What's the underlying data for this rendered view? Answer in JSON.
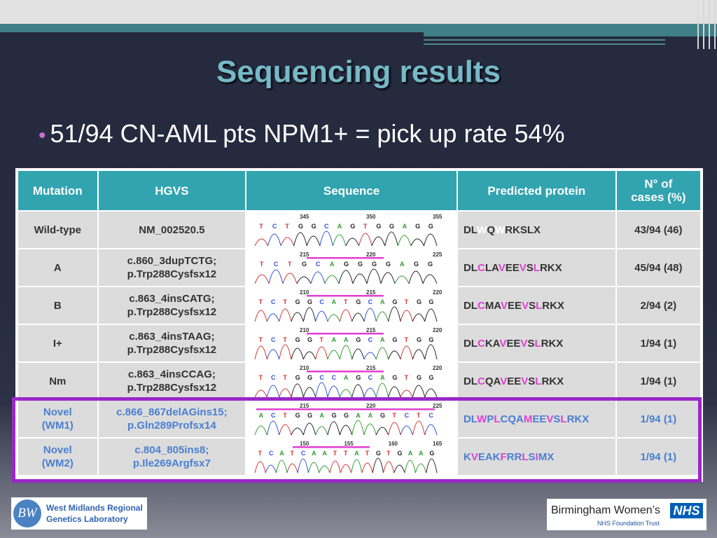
{
  "slide": {
    "title": "Sequencing results",
    "bullet": "51/94 CN-AML pts NPM1+ = pick up rate 54%"
  },
  "table": {
    "headers": {
      "mutation": "Mutation",
      "hgvs": "HGVS",
      "sequence": "Sequence",
      "protein": "Predicted protein",
      "cases_line1": "N° of",
      "cases_line2": "cases (%)"
    },
    "rows": [
      {
        "mutation": "Wild-type",
        "mutation2": "",
        "hgvs1": "NM_002520.5",
        "hgvs2": "",
        "ticks": [
          "345",
          "350",
          "355"
        ],
        "bases": "TCTGGCAGTGGAGG",
        "protein": [
          [
            "DL",
            "n"
          ],
          [
            "W",
            "w"
          ],
          [
            "Q",
            "n"
          ],
          [
            "W",
            "w"
          ],
          [
            "RKSLX",
            "n"
          ]
        ],
        "cases": "43/94 (46)"
      },
      {
        "mutation": "A",
        "mutation2": "",
        "hgvs1": "c.860_3dupTCTG;",
        "hgvs2": "p.Trp288Cysfsx12",
        "ticks": [
          "215",
          "220",
          "225"
        ],
        "bases": "TCTGCAGGGGAGG",
        "protein": [
          [
            "DL",
            "n"
          ],
          [
            "C",
            "c"
          ],
          [
            "LA",
            "n"
          ],
          [
            "V",
            "c"
          ],
          [
            "EE",
            "n"
          ],
          [
            "V",
            "c"
          ],
          [
            "S",
            "n"
          ],
          [
            "L",
            "c"
          ],
          [
            "RKX",
            "n"
          ]
        ],
        "cases": "45/94 (48)"
      },
      {
        "mutation": "B",
        "mutation2": "",
        "hgvs1": "c.863_4insCATG;",
        "hgvs2": "p.Trp288Cysfsx12",
        "ticks": [
          "210",
          "215",
          "220"
        ],
        "bases": "TCTGGCATGCAGTGG",
        "protein": [
          [
            "DL",
            "n"
          ],
          [
            "C",
            "c"
          ],
          [
            "MA",
            "n"
          ],
          [
            "V",
            "c"
          ],
          [
            "EE",
            "n"
          ],
          [
            "V",
            "c"
          ],
          [
            "S",
            "n"
          ],
          [
            "L",
            "c"
          ],
          [
            "RKX",
            "n"
          ]
        ],
        "cases": "2/94 (2)"
      },
      {
        "mutation": "I+",
        "mutation2": "",
        "hgvs1": "c.863_4insTAAG;",
        "hgvs2": "p.Trp288Cysfsx12",
        "ticks": [
          "210",
          "215",
          "220"
        ],
        "bases": "TCTGGTAAGCAGTGG",
        "protein": [
          [
            "DL",
            "n"
          ],
          [
            "C",
            "c"
          ],
          [
            "KA",
            "n"
          ],
          [
            "V",
            "c"
          ],
          [
            "EE",
            "n"
          ],
          [
            "V",
            "c"
          ],
          [
            "S",
            "n"
          ],
          [
            "L",
            "c"
          ],
          [
            "RKX",
            "n"
          ]
        ],
        "cases": "1/94 (1)"
      },
      {
        "mutation": "Nm",
        "mutation2": "",
        "hgvs1": "c.863_4insCCAG;",
        "hgvs2": "p.Trp288Cysfsx12",
        "ticks": [
          "210",
          "215",
          "220"
        ],
        "bases": "TCTGGCCAGCAGTGG",
        "protein": [
          [
            "DL",
            "n"
          ],
          [
            "C",
            "c"
          ],
          [
            "QA",
            "n"
          ],
          [
            "V",
            "c"
          ],
          [
            "EE",
            "n"
          ],
          [
            "V",
            "c"
          ],
          [
            "S",
            "n"
          ],
          [
            "L",
            "c"
          ],
          [
            "RKX",
            "n"
          ]
        ],
        "cases": "1/94 (1)"
      },
      {
        "mutation": "Novel",
        "mutation2": "(WM1)",
        "hgvs1": "c.866_867delAGins15;",
        "hgvs2": "p.Gln289Profsx14",
        "ticks": [
          "215",
          "220",
          "225"
        ],
        "bases": "ACTGGAGGAAGTCTC",
        "protein": [
          [
            "DL",
            "n"
          ],
          [
            "W",
            "c"
          ],
          [
            "P",
            "n"
          ],
          [
            "L",
            "c"
          ],
          [
            "CQA",
            "n"
          ],
          [
            "M",
            "c"
          ],
          [
            "EE",
            "n"
          ],
          [
            "V",
            "c"
          ],
          [
            "S",
            "n"
          ],
          [
            "L",
            "c"
          ],
          [
            "RKX",
            "n"
          ]
        ],
        "cases": "1/94 (1)"
      },
      {
        "mutation": "Novel",
        "mutation2": "(WM2)",
        "hgvs1": "c.804_805ins8;",
        "hgvs2": "p.Ile269Argfsx7",
        "ticks": [
          "150",
          "155",
          "160",
          "165"
        ],
        "bases": "TCATCAATTATGTGAAG",
        "protein": [
          [
            "K",
            "n"
          ],
          [
            "V",
            "c"
          ],
          [
            "EAK",
            "n"
          ],
          [
            "F",
            "c"
          ],
          [
            "RR",
            "n"
          ],
          [
            "L",
            "c"
          ],
          [
            "S",
            "n"
          ],
          [
            "I",
            "c"
          ],
          [
            "MX",
            "n"
          ]
        ],
        "cases": "1/94 (1)"
      }
    ]
  },
  "logos": {
    "wm_mark": "BW",
    "wm_line1": "West Midlands Regional",
    "wm_line2": "Genetics Laboratory",
    "bw_name": "Birmingham Women’s",
    "nhs": "NHS",
    "bw_sub": "NHS Foundation Trust"
  },
  "colors": {
    "header": "#31a4b0",
    "novel_text": "#4a7fd2",
    "highlight_border": "#9b27c9",
    "mutant_residue": "#e23fd2",
    "title": "#76b9c8"
  }
}
